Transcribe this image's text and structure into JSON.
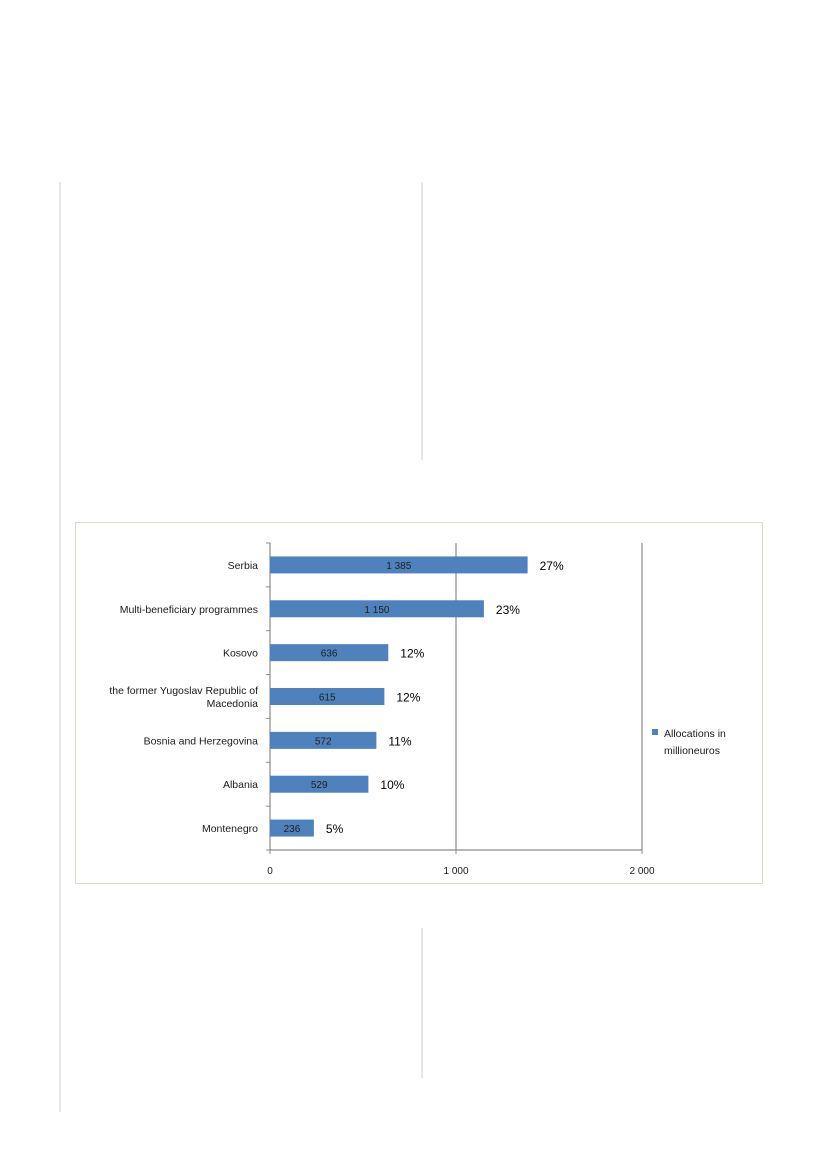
{
  "chart_data": {
    "type": "bar",
    "orientation": "horizontal",
    "categories": [
      "Serbia",
      "Multi-beneficiary programmes",
      "Kosovo",
      "the former Yugoslav Republic of Macedonia",
      "Bosnia and Herzegovina",
      "Albania",
      "Montenegro"
    ],
    "category_label_lines": [
      [
        "Serbia"
      ],
      [
        "Multi-beneficiary programmes"
      ],
      [
        "Kosovo"
      ],
      [
        "the former Yugoslav Republic of",
        "Macedonia"
      ],
      [
        "Bosnia and Herzegovina"
      ],
      [
        "Albania"
      ],
      [
        "Montenegro"
      ]
    ],
    "series": [
      {
        "name": "Allocations in millioneuros",
        "legend_lines": [
          "Allocations in",
          "millioneuros"
        ],
        "values": [
          1385,
          1150,
          636,
          615,
          572,
          529,
          236
        ],
        "value_labels": [
          "1 385",
          "1 150",
          "636",
          "615",
          "572",
          "529",
          "236"
        ],
        "percent_labels": [
          "27%",
          "23%",
          "12%",
          "12%",
          "11%",
          "10%",
          "5%"
        ],
        "color": "#4f81bd"
      }
    ],
    "xlim": [
      0,
      2000
    ],
    "x_ticks": [
      0,
      1000,
      2000
    ],
    "x_tick_labels": [
      "0",
      "1 000",
      "2 000"
    ],
    "grid": "vertical major gridlines",
    "legend_position": "right",
    "title": "",
    "xlabel": "",
    "ylabel": ""
  }
}
